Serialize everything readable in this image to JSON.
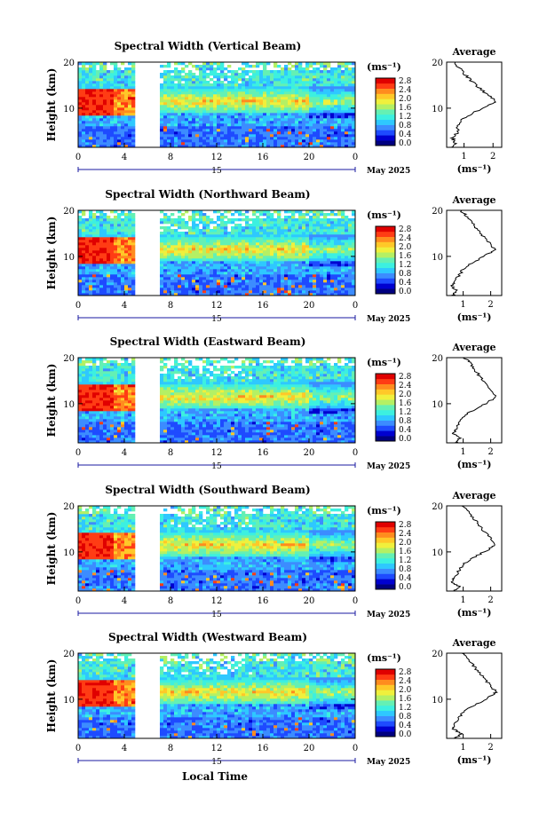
{
  "figure": {
    "date_label": "May 2025",
    "xlabel": "Local Time",
    "ylabel": "Height (km)",
    "unit_label": "(ms⁻¹)",
    "average_title": "Average",
    "average_xlabel": "(ms⁻¹)",
    "colorbar_ticks": [
      "0.0",
      "0.4",
      "0.8",
      "1.2",
      "1.6",
      "2.0",
      "2.4",
      "2.8"
    ],
    "colorscale": [
      "#000080",
      "#0000d0",
      "#1e4bff",
      "#3c8cff",
      "#2ec8ff",
      "#3cf0e0",
      "#64f0b4",
      "#b4f064",
      "#f0f03c",
      "#ffc828",
      "#ff8c1e",
      "#ff3c14",
      "#e00000"
    ],
    "day_axis_tick": "15"
  },
  "chart_data": [
    {
      "type": "heatmap",
      "title": "Spectral Width (Vertical Beam)",
      "x_ticks": [
        "0",
        "4",
        "8",
        "12",
        "16",
        "20",
        "0"
      ],
      "y_ticks": [
        "20",
        "10"
      ],
      "xlim": [
        0,
        24
      ],
      "ylim": [
        1.5,
        20
      ],
      "gap_hours": [
        4.9,
        7.0
      ],
      "avg_ticks": [
        "1",
        "2"
      ],
      "avg_xlim": [
        0.4,
        2.3
      ],
      "avg_profile": [
        [
          0.55,
          1.5
        ],
        [
          0.7,
          2.5
        ],
        [
          0.6,
          3.5
        ],
        [
          0.75,
          4.5
        ],
        [
          0.8,
          6
        ],
        [
          0.95,
          7.5
        ],
        [
          1.3,
          9
        ],
        [
          1.85,
          10.5
        ],
        [
          2.1,
          11.5
        ],
        [
          1.8,
          13
        ],
        [
          1.5,
          14.5
        ],
        [
          1.25,
          16
        ],
        [
          1.0,
          17.5
        ],
        [
          0.8,
          19
        ],
        [
          0.7,
          20
        ]
      ]
    },
    {
      "type": "heatmap",
      "title": "Spectral Width (Northward Beam)",
      "x_ticks": [
        "0",
        "4",
        "8",
        "12",
        "16",
        "20",
        "0"
      ],
      "y_ticks": [
        "20",
        "10"
      ],
      "xlim": [
        0,
        24
      ],
      "ylim": [
        1.5,
        20
      ],
      "gap_hours": [
        4.9,
        7.0
      ],
      "avg_ticks": [
        "1",
        "2"
      ],
      "avg_xlim": [
        0.4,
        2.4
      ],
      "avg_profile": [
        [
          0.6,
          1.5
        ],
        [
          0.75,
          2.5
        ],
        [
          0.6,
          3.5
        ],
        [
          0.7,
          4.5
        ],
        [
          0.85,
          6
        ],
        [
          1.05,
          7.5
        ],
        [
          1.45,
          9
        ],
        [
          1.9,
          10.5
        ],
        [
          2.15,
          11.5
        ],
        [
          1.95,
          13
        ],
        [
          1.7,
          14.5
        ],
        [
          1.5,
          16
        ],
        [
          1.3,
          17.5
        ],
        [
          1.1,
          19
        ],
        [
          0.9,
          20
        ]
      ]
    },
    {
      "type": "heatmap",
      "title": "Spectral Width (Eastward Beam)",
      "x_ticks": [
        "0",
        "4",
        "8",
        "12",
        "16",
        "20",
        "0"
      ],
      "y_ticks": [
        "20",
        "10"
      ],
      "xlim": [
        0,
        24
      ],
      "ylim": [
        1.5,
        20
      ],
      "gap_hours": [
        4.9,
        7.0
      ],
      "avg_ticks": [
        "1",
        "2"
      ],
      "avg_xlim": [
        0.4,
        2.4
      ],
      "avg_profile": [
        [
          0.7,
          1.5
        ],
        [
          0.9,
          2.5
        ],
        [
          0.65,
          3.5
        ],
        [
          0.75,
          4.5
        ],
        [
          0.85,
          6
        ],
        [
          1.05,
          7.5
        ],
        [
          1.5,
          9
        ],
        [
          1.95,
          10.5
        ],
        [
          2.2,
          11.5
        ],
        [
          2.0,
          13
        ],
        [
          1.75,
          14.5
        ],
        [
          1.6,
          16
        ],
        [
          1.4,
          17.5
        ],
        [
          1.25,
          19
        ],
        [
          1.0,
          20
        ]
      ]
    },
    {
      "type": "heatmap",
      "title": "Spectral Width (Southward Beam)",
      "x_ticks": [
        "0",
        "4",
        "8",
        "12",
        "16",
        "20",
        "0"
      ],
      "y_ticks": [
        "20",
        "10"
      ],
      "xlim": [
        0,
        24
      ],
      "ylim": [
        1.5,
        20
      ],
      "gap_hours": [
        4.9,
        7.0
      ],
      "avg_ticks": [
        "1",
        "2"
      ],
      "avg_xlim": [
        0.4,
        2.4
      ],
      "avg_profile": [
        [
          0.65,
          1.5
        ],
        [
          0.85,
          2.5
        ],
        [
          0.6,
          3.5
        ],
        [
          0.7,
          4.5
        ],
        [
          0.85,
          6
        ],
        [
          1.05,
          7.5
        ],
        [
          1.45,
          9
        ],
        [
          1.9,
          10.5
        ],
        [
          2.2,
          11.5
        ],
        [
          2.0,
          13
        ],
        [
          1.75,
          14.5
        ],
        [
          1.55,
          16
        ],
        [
          1.35,
          17.5
        ],
        [
          1.15,
          19
        ],
        [
          0.95,
          20
        ]
      ]
    },
    {
      "type": "heatmap",
      "title": "Spectral Width (Westward Beam)",
      "x_ticks": [
        "0",
        "4",
        "8",
        "12",
        "16",
        "20",
        "0"
      ],
      "y_ticks": [
        "20",
        "10"
      ],
      "xlim": [
        0,
        24
      ],
      "ylim": [
        1.5,
        20
      ],
      "gap_hours": [
        4.9,
        7.0
      ],
      "avg_ticks": [
        "1",
        "2"
      ],
      "avg_xlim": [
        0.4,
        2.4
      ],
      "avg_profile": [
        [
          0.7,
          1.5
        ],
        [
          0.95,
          2.5
        ],
        [
          0.65,
          3.5
        ],
        [
          0.7,
          4.5
        ],
        [
          0.85,
          6
        ],
        [
          1.05,
          7.5
        ],
        [
          1.5,
          9
        ],
        [
          1.95,
          10.5
        ],
        [
          2.2,
          11.5
        ],
        [
          2.0,
          13
        ],
        [
          1.75,
          14.5
        ],
        [
          1.55,
          16
        ],
        [
          1.35,
          17.5
        ],
        [
          1.15,
          19
        ],
        [
          0.95,
          20
        ]
      ]
    }
  ]
}
